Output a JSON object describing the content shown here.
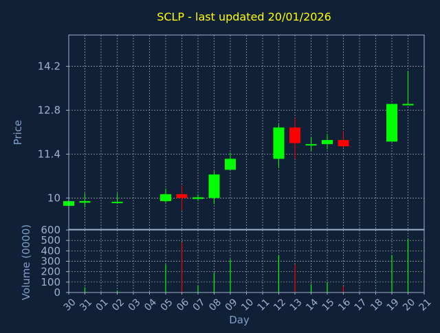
{
  "chart_data": {
    "type": "candlestick",
    "title": "SCLP - last updated 20/01/2026",
    "xlabel": "Day",
    "price_panel": {
      "ylabel": "Price",
      "ylim": [
        9.0,
        15.2
      ],
      "yticks": [
        "10",
        "11.4",
        "12.8",
        "14.2"
      ],
      "grid": true
    },
    "volume_panel": {
      "ylabel": "Volume (0000)",
      "ylim": [
        0,
        600
      ],
      "yticks": [
        "0",
        "100",
        "200",
        "300",
        "400",
        "500",
        "600"
      ],
      "grid": true
    },
    "categories": [
      "30",
      "31",
      "01",
      "02",
      "03",
      "04",
      "05",
      "06",
      "07",
      "08",
      "09",
      "10",
      "11",
      "12",
      "13",
      "14",
      "15",
      "16",
      "17",
      "18",
      "19",
      "20",
      "21"
    ],
    "candles": [
      {
        "day": "30",
        "open": 9.75,
        "close": 9.9,
        "high": 9.95,
        "low": 9.75,
        "volume": 5
      },
      {
        "day": "31",
        "open": 9.85,
        "close": 9.9,
        "high": 10.15,
        "low": 9.7,
        "volume": 50
      },
      {
        "day": "02",
        "open": 9.85,
        "close": 9.88,
        "high": 10.15,
        "low": 9.85,
        "volume": 20
      },
      {
        "day": "05",
        "open": 9.9,
        "close": 10.12,
        "high": 10.3,
        "low": 9.85,
        "volume": 270
      },
      {
        "day": "06",
        "open": 10.12,
        "close": 10.0,
        "high": 10.4,
        "low": 9.6,
        "volume": 480
      },
      {
        "day": "07",
        "open": 9.97,
        "close": 10.02,
        "high": 10.12,
        "low": 9.9,
        "volume": 60
      },
      {
        "day": "08",
        "open": 10.0,
        "close": 10.75,
        "high": 10.85,
        "low": 9.8,
        "volume": 190
      },
      {
        "day": "09",
        "open": 10.9,
        "close": 11.25,
        "high": 11.45,
        "low": 10.9,
        "volume": 320
      },
      {
        "day": "12",
        "open": 11.25,
        "close": 12.25,
        "high": 12.35,
        "low": 10.95,
        "volume": 360
      },
      {
        "day": "13",
        "open": 12.25,
        "close": 11.75,
        "high": 12.55,
        "low": 11.25,
        "volume": 270
      },
      {
        "day": "14",
        "open": 11.7,
        "close": 11.72,
        "high": 11.95,
        "low": 11.5,
        "volume": 80
      },
      {
        "day": "15",
        "open": 11.72,
        "close": 11.85,
        "high": 12.05,
        "low": 11.55,
        "volume": 100
      },
      {
        "day": "16",
        "open": 11.85,
        "close": 11.65,
        "high": 12.15,
        "low": 11.6,
        "volume": 60
      },
      {
        "day": "19",
        "open": 11.8,
        "close": 13.0,
        "high": 13.0,
        "low": 11.8,
        "volume": 360
      },
      {
        "day": "20",
        "open": 12.97,
        "close": 13.0,
        "high": 14.05,
        "low": 12.97,
        "volume": 510
      }
    ],
    "up_color": "#00ff00",
    "down_color": "#ff0000",
    "grid_color": "#d8d8d8",
    "axis_color": "#9fb3cc",
    "title_color": "#ffff00"
  }
}
